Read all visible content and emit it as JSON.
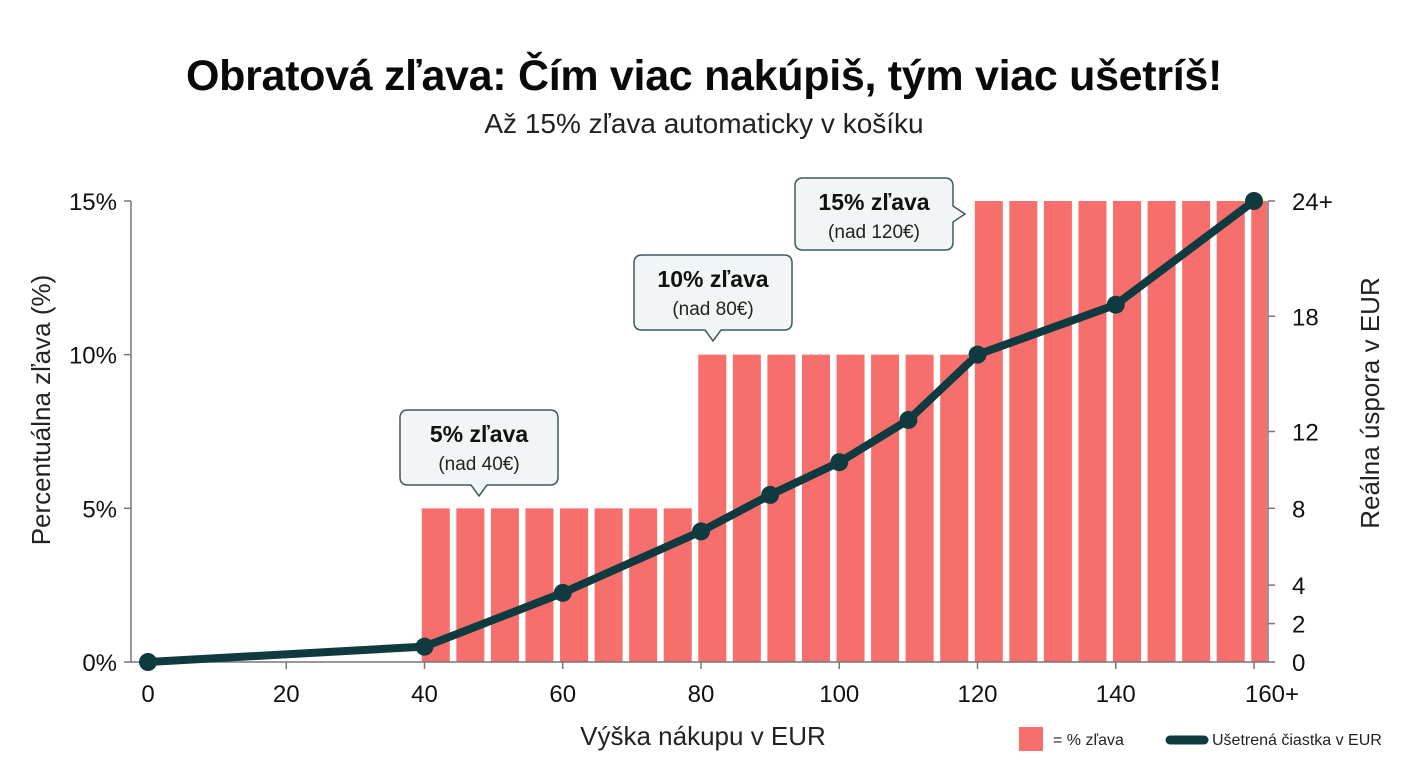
{
  "chart_data": {
    "type": "bar",
    "title": "Obratová zľava: Čím viac nakúpiš, tým viac ušetríš!",
    "subtitle": "Až 15% zľava automaticky v košíku",
    "xlabel": "Výška nákupu v EUR",
    "ylabel": "Percentuálna zľava (%)",
    "y2label": "Reálna úspora v EUR",
    "xlim": [
      0,
      160
    ],
    "ylim": [
      0,
      15
    ],
    "y2lim": [
      0,
      24
    ],
    "x_ticks": [
      {
        "value": 0,
        "label": "0"
      },
      {
        "value": 20,
        "label": "20"
      },
      {
        "value": 40,
        "label": "40"
      },
      {
        "value": 60,
        "label": "60"
      },
      {
        "value": 80,
        "label": "80"
      },
      {
        "value": 100,
        "label": "100"
      },
      {
        "value": 120,
        "label": "120"
      },
      {
        "value": 140,
        "label": "140"
      },
      {
        "value": 160,
        "label": "160+"
      }
    ],
    "y_ticks": [
      {
        "value": 0,
        "label": "0%"
      },
      {
        "value": 5,
        "label": "5%"
      },
      {
        "value": 10,
        "label": "10%"
      },
      {
        "value": 15,
        "label": "15%"
      }
    ],
    "y2_ticks": [
      {
        "value": 0,
        "label": "0"
      },
      {
        "value": 2,
        "label": "2"
      },
      {
        "value": 4,
        "label": "4"
      },
      {
        "value": 8,
        "label": "8"
      },
      {
        "value": 12,
        "label": "12"
      },
      {
        "value": 18,
        "label": "18"
      },
      {
        "value": 24,
        "label": "24+"
      }
    ],
    "series": [
      {
        "name": "= % zľava",
        "type": "bar",
        "axis": "left",
        "color": "#F76F6C",
        "x": [
          40,
          45,
          50,
          55,
          60,
          65,
          70,
          75,
          80,
          85,
          90,
          95,
          100,
          105,
          110,
          115,
          120,
          125,
          130,
          135,
          140,
          145,
          150,
          155,
          160
        ],
        "values": [
          5,
          5,
          5,
          5,
          5,
          5,
          5,
          5,
          10,
          10,
          10,
          10,
          10,
          10,
          10,
          10,
          15,
          15,
          15,
          15,
          15,
          15,
          15,
          15,
          15
        ]
      },
      {
        "name": "Ušetrená čiastka v EUR",
        "type": "line",
        "axis": "right",
        "color": "#0F3A40",
        "x": [
          0,
          40,
          60,
          80,
          90,
          100,
          110,
          120,
          140,
          160
        ],
        "values": [
          0,
          0.8,
          3.6,
          6.8,
          8.7,
          10.4,
          12.6,
          16.0,
          18.6,
          24
        ]
      }
    ],
    "annotations": [
      {
        "title": "5% zľava",
        "text": "(nad 40€)",
        "target_x": 47,
        "target_y": 5,
        "pointer": "down"
      },
      {
        "title": "10% zľava",
        "text": "(nad 80€)",
        "target_x": 87,
        "target_y": 10,
        "pointer": "down"
      },
      {
        "title": "15% zľava",
        "text": "(nad 120€)",
        "target_x": 120,
        "target_y": 15,
        "pointer": "right"
      }
    ],
    "legend": {
      "position": "bottom-right"
    },
    "grid": false
  }
}
